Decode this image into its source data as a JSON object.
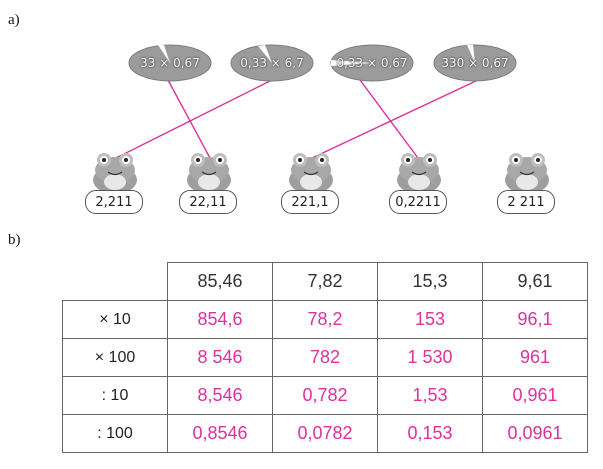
{
  "part_a_label": "a)",
  "part_b_label": "b)",
  "leaves": [
    {
      "expr": "33 × 0,67"
    },
    {
      "expr": "0,33 × 6,7"
    },
    {
      "expr": "0,33 × 0,67"
    },
    {
      "expr": "330 × 0,67"
    }
  ],
  "frogs": [
    {
      "answer": "2,211"
    },
    {
      "answer": "22,11"
    },
    {
      "answer": "221,1"
    },
    {
      "answer": "0,2211"
    },
    {
      "answer": "2 211"
    }
  ],
  "matches": [
    {
      "leaf": 0,
      "frog": 1
    },
    {
      "leaf": 1,
      "frog": 0
    },
    {
      "leaf": 2,
      "frog": 3
    },
    {
      "leaf": 3,
      "frog": 2
    }
  ],
  "colors": {
    "answer_ink": "#e0309c",
    "leaf": "#9b9b9b",
    "frog": "#9e9e9e"
  },
  "table": {
    "headers": [
      "85,46",
      "7,82",
      "15,3",
      "9,61"
    ],
    "rows": [
      {
        "op": "× 10",
        "values": [
          "854,6",
          "78,2",
          "153",
          "96,1"
        ]
      },
      {
        "op": "× 100",
        "values": [
          "8 546",
          "782",
          "1 530",
          "961"
        ]
      },
      {
        "op": ": 10",
        "values": [
          "8,546",
          "0,782",
          "1,53",
          "0,961"
        ]
      },
      {
        "op": ": 100",
        "values": [
          "0,8546",
          "0,0782",
          "0,153",
          "0,0961"
        ]
      }
    ]
  }
}
